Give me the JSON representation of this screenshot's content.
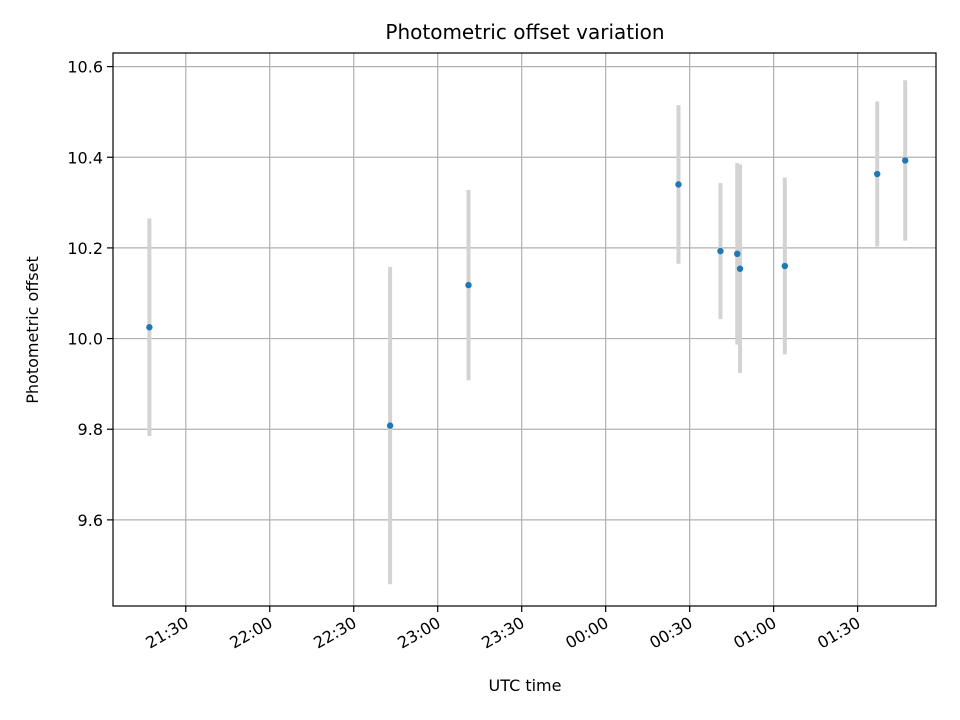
{
  "chart_data": {
    "type": "scatter",
    "title": "Photometric offset variation",
    "xlabel": "UTC time",
    "ylabel": "Photometric offset",
    "x_ticks": [
      "21:30",
      "22:00",
      "22:30",
      "23:00",
      "23:30",
      "00:00",
      "00:30",
      "01:00",
      "01:30"
    ],
    "y_ticks": [
      "9.6",
      "9.8",
      "10.0",
      "10.2",
      "10.4",
      "10.6"
    ],
    "xlim": [
      "21:04",
      "01:58"
    ],
    "ylim": [
      9.41,
      10.63
    ],
    "grid": true,
    "points": [
      {
        "x": "21:17",
        "y": 10.025,
        "err": 0.24
      },
      {
        "x": "22:43",
        "y": 9.808,
        "err": 0.35
      },
      {
        "x": "23:11",
        "y": 10.118,
        "err": 0.21
      },
      {
        "x": "00:26",
        "y": 10.34,
        "err": 0.175
      },
      {
        "x": "00:41",
        "y": 10.193,
        "err": 0.15
      },
      {
        "x": "00:47",
        "y": 10.187,
        "err": 0.2
      },
      {
        "x": "00:48",
        "y": 10.154,
        "err": 0.23
      },
      {
        "x": "01:04",
        "y": 10.16,
        "err": 0.195
      },
      {
        "x": "01:37",
        "y": 10.363,
        "err": 0.16
      },
      {
        "x": "01:47",
        "y": 10.393,
        "err": 0.177
      }
    ],
    "colors": {
      "marker": "#1f77b4",
      "errorbar": "#d3d3d3",
      "grid": "#b0b0b0",
      "axes": "#000000"
    }
  }
}
